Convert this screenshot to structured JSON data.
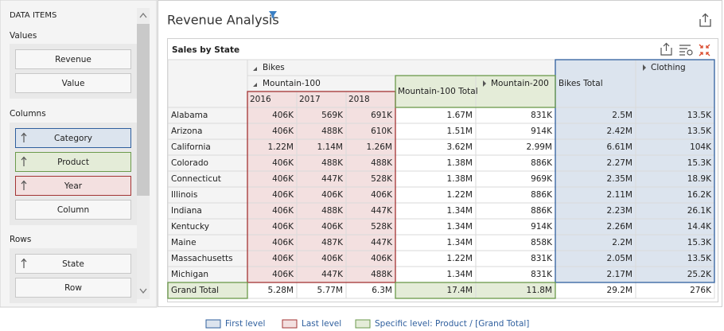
{
  "sidebar": {
    "title": "DATA ITEMS",
    "sections": [
      {
        "label": "Values",
        "items": [
          "Revenue",
          "Value"
        ]
      },
      {
        "label": "Columns",
        "items": [
          "Category",
          "Product",
          "Year",
          "Column"
        ]
      },
      {
        "label": "Rows",
        "items": [
          "State",
          "Row"
        ]
      }
    ]
  },
  "dashboard": {
    "title": "Revenue Analysis"
  },
  "pivot": {
    "title": "Sales by State",
    "column_headers": {
      "bikes": "Bikes",
      "mountain_100": "Mountain-100",
      "years": [
        "2016",
        "2017",
        "2018"
      ],
      "mountain_100_total": "Mountain-100 Total",
      "mountain_200": "Mountain-200",
      "bikes_total": "Bikes Total",
      "clothing": "Clothing"
    },
    "rows": [
      {
        "state": "Alabama",
        "cells": [
          "406K",
          "569K",
          "691K",
          "1.67M",
          "831K",
          "2.5M",
          "13.5K"
        ]
      },
      {
        "state": "Arizona",
        "cells": [
          "406K",
          "488K",
          "610K",
          "1.51M",
          "914K",
          "2.42M",
          "13.5K"
        ]
      },
      {
        "state": "California",
        "cells": [
          "1.22M",
          "1.14M",
          "1.26M",
          "3.62M",
          "2.99M",
          "6.61M",
          "104K"
        ]
      },
      {
        "state": "Colorado",
        "cells": [
          "406K",
          "488K",
          "488K",
          "1.38M",
          "886K",
          "2.27M",
          "15.3K"
        ]
      },
      {
        "state": "Connecticut",
        "cells": [
          "406K",
          "447K",
          "528K",
          "1.38M",
          "969K",
          "2.35M",
          "18.9K"
        ]
      },
      {
        "state": "Illinois",
        "cells": [
          "406K",
          "406K",
          "406K",
          "1.22M",
          "886K",
          "2.11M",
          "16.2K"
        ]
      },
      {
        "state": "Indiana",
        "cells": [
          "406K",
          "488K",
          "447K",
          "1.34M",
          "886K",
          "2.23M",
          "26.1K"
        ]
      },
      {
        "state": "Kentucky",
        "cells": [
          "406K",
          "406K",
          "528K",
          "1.34M",
          "914K",
          "2.26M",
          "14.4K"
        ]
      },
      {
        "state": "Maine",
        "cells": [
          "406K",
          "487K",
          "447K",
          "1.34M",
          "858K",
          "2.2M",
          "15.3K"
        ]
      },
      {
        "state": "Massachusetts",
        "cells": [
          "406K",
          "406K",
          "406K",
          "1.22M",
          "831K",
          "2.05M",
          "13.5K"
        ]
      },
      {
        "state": "Michigan",
        "cells": [
          "406K",
          "447K",
          "488K",
          "1.34M",
          "831K",
          "2.17M",
          "25.2K"
        ]
      }
    ],
    "grand_total": {
      "label": "Grand Total",
      "cells": [
        "5.28M",
        "5.77M",
        "6.3M",
        "17.4M",
        "11.8M",
        "29.2M",
        "276K"
      ]
    }
  },
  "legend": [
    "First level",
    "Last level",
    "Specific level: Product / [Grand Total]"
  ]
}
